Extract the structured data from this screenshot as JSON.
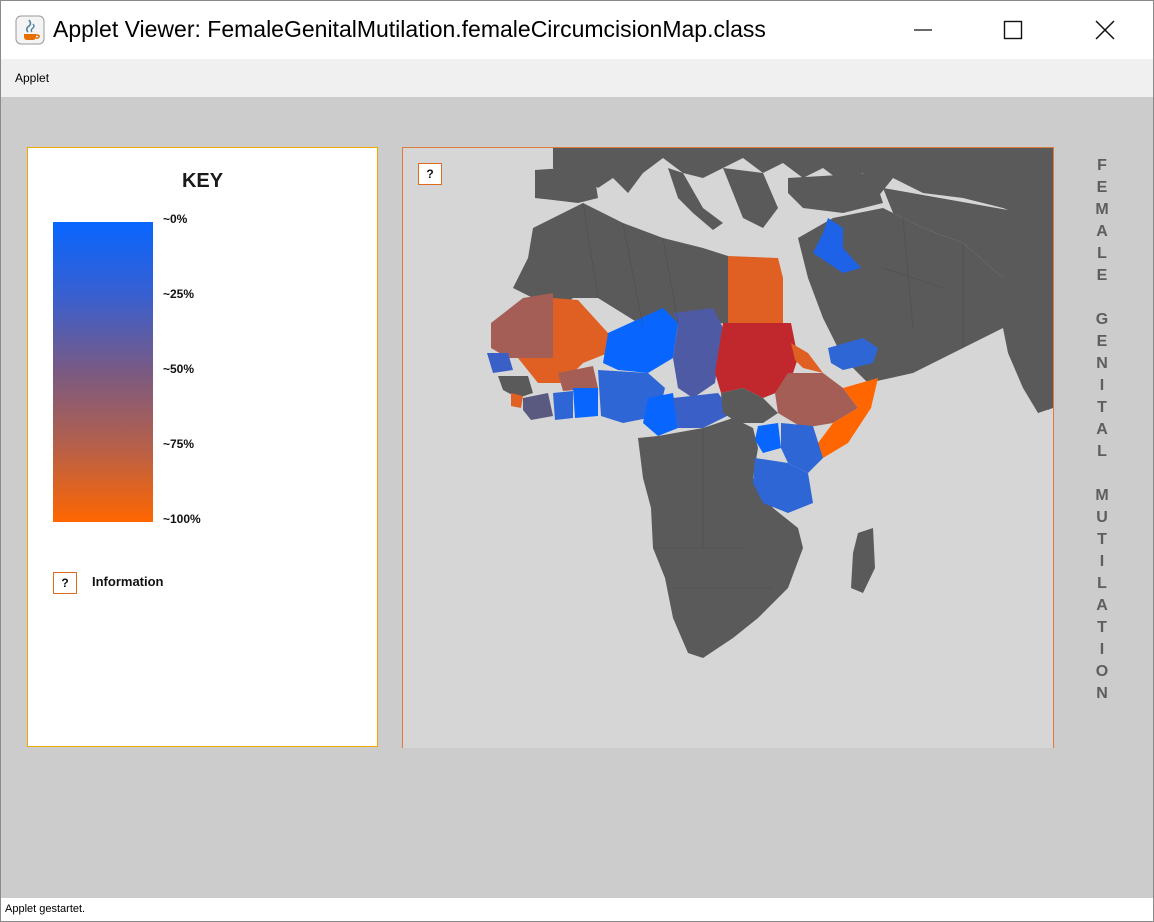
{
  "window": {
    "title": "Applet Viewer: FemaleGenitalMutilation.femaleCircumcisionMap.class"
  },
  "menu": {
    "items": [
      "Applet"
    ]
  },
  "key": {
    "title": "KEY",
    "labels": [
      "~0%",
      "~25%",
      "~50%",
      "~75%",
      "~100%"
    ],
    "gradient_colors": [
      "#0866ff",
      "#3a5fcf",
      "#7a5a82",
      "#b6604a",
      "#ff6600"
    ],
    "info_button": "?",
    "info_label": "Information"
  },
  "map": {
    "info_button": "?",
    "land_color": "#5a5a5a",
    "sea_color": "#d6d6d6"
  },
  "side_title": {
    "letters": [
      "F",
      "E",
      "M",
      "A",
      "L",
      "E",
      " ",
      "G",
      "E",
      "N",
      "I",
      "T",
      "A",
      "L",
      " ",
      "M",
      "U",
      "T",
      "I",
      "L",
      "A",
      "T",
      "I",
      "O",
      "N"
    ]
  },
  "status": {
    "text": "Applet gestartet."
  }
}
